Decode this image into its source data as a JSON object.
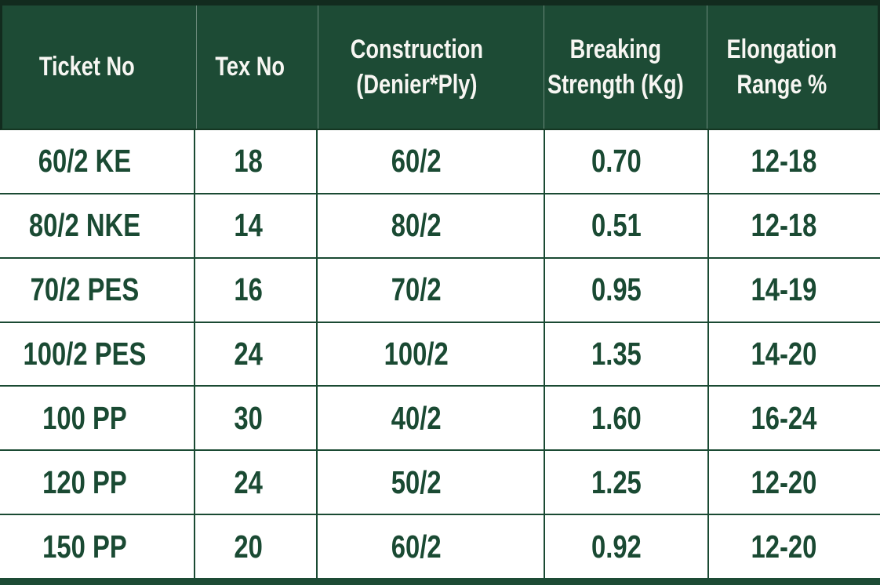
{
  "table": {
    "columns": [
      {
        "label": "Ticket No"
      },
      {
        "label": "Tex No"
      },
      {
        "label": "Construction (Denier*Ply)"
      },
      {
        "label": "Breaking Strength (Kg)"
      },
      {
        "label": "Elongation Range %"
      }
    ],
    "rows": [
      [
        "60/2 KE",
        "18",
        "60/2",
        "0.70",
        "12-18"
      ],
      [
        "80/2 NKE",
        "14",
        "80/2",
        "0.51",
        "12-18"
      ],
      [
        "70/2 PES",
        "16",
        "70/2",
        "0.95",
        "14-19"
      ],
      [
        "100/2 PES",
        "24",
        "100/2",
        "1.35",
        "14-20"
      ],
      [
        "100 PP",
        "30",
        "40/2",
        "1.60",
        "16-24"
      ],
      [
        "120 PP",
        "24",
        "50/2",
        "1.25",
        "12-20"
      ],
      [
        "150 PP",
        "20",
        "60/2",
        "0.92",
        "12-20"
      ]
    ]
  },
  "colors": {
    "header_bg": "#1d4b35",
    "header_text": "#f7f6f2",
    "header_outline": "#122b1e",
    "body_bg": "#ffffff",
    "body_text": "#1a4a33",
    "grid_line": "#1a4a33",
    "bottom_strip": "#1d4b35"
  }
}
